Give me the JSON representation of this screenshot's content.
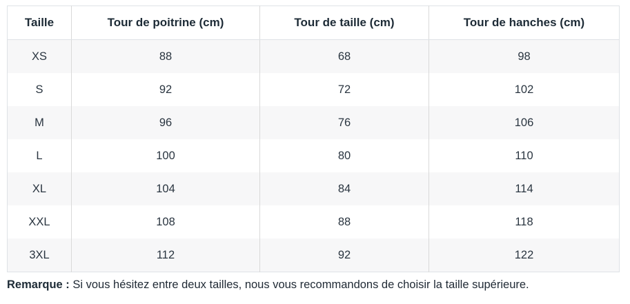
{
  "table": {
    "name": "size-chart",
    "headers": [
      "Taille",
      "Tour de poitrine (cm)",
      "Tour de taille (cm)",
      "Tour de hanches (cm)"
    ],
    "rows": [
      [
        "XS",
        "88",
        "68",
        "98"
      ],
      [
        "S",
        "92",
        "72",
        "102"
      ],
      [
        "M",
        "96",
        "76",
        "106"
      ],
      [
        "L",
        "100",
        "80",
        "110"
      ],
      [
        "XL",
        "104",
        "84",
        "114"
      ],
      [
        "XXL",
        "108",
        "88",
        "118"
      ],
      [
        "3XL",
        "112",
        "92",
        "122"
      ]
    ]
  },
  "note": {
    "label": "Remarque :",
    "text": " Si vous hésitez entre deux tailles, nous vous recommandons de choisir la taille supérieure."
  },
  "colors": {
    "text": "#212b36",
    "header_text": "#1d2b36",
    "outer_border": "#dee2e6",
    "column_divider": "#d9d9d9",
    "stripe_row": "#f7f7f8",
    "background": "#ffffff"
  }
}
